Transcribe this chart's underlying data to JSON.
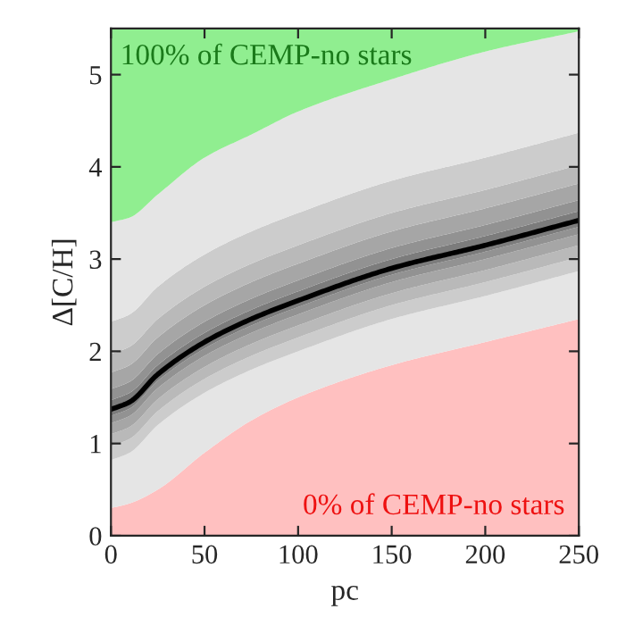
{
  "chart_data": {
    "type": "area",
    "stacked": true,
    "xlabel": "pc",
    "ylabel": "Δ[C/H]",
    "annotations": [
      "100% of CEMP-no stars",
      "0% of CEMP-no stars"
    ],
    "xlim": [
      0,
      250
    ],
    "ylim": [
      0,
      5.5
    ],
    "xticks": [
      0,
      50,
      100,
      150,
      200,
      250
    ],
    "yticks": [
      0,
      1,
      2,
      3,
      4,
      5
    ],
    "grid": false,
    "legend": false,
    "x": [
      0,
      10,
      25,
      50,
      75,
      100,
      150,
      200,
      250
    ],
    "series": [
      {
        "color": "#ffc0c0",
        "values": [
          0.3,
          0.35,
          0.5,
          0.9,
          1.25,
          1.5,
          1.85,
          2.1,
          2.35
        ]
      },
      {
        "color": "#e5e5e5",
        "values": [
          0.52,
          0.55,
          0.7,
          0.65,
          0.55,
          0.5,
          0.5,
          0.5,
          0.52
        ]
      },
      {
        "color": "#cccccc",
        "values": [
          0.15,
          0.15,
          0.15,
          0.15,
          0.15,
          0.15,
          0.15,
          0.15,
          0.15
        ]
      },
      {
        "color": "#b9b9b9",
        "values": [
          0.13,
          0.13,
          0.13,
          0.13,
          0.13,
          0.13,
          0.13,
          0.13,
          0.13
        ]
      },
      {
        "color": "#a6a6a6",
        "values": [
          0.12,
          0.12,
          0.12,
          0.12,
          0.12,
          0.12,
          0.12,
          0.12,
          0.12
        ]
      },
      {
        "color": "#929292",
        "values": [
          0.08,
          0.08,
          0.08,
          0.08,
          0.08,
          0.08,
          0.08,
          0.08,
          0.08
        ]
      },
      {
        "color": "#7c7c7c",
        "values": [
          0.17,
          0.17,
          0.17,
          0.17,
          0.17,
          0.17,
          0.17,
          0.17,
          0.17
        ]
      },
      {
        "color": "#929292",
        "values": [
          0.12,
          0.12,
          0.12,
          0.12,
          0.12,
          0.12,
          0.12,
          0.12,
          0.12
        ]
      },
      {
        "color": "#a6a6a6",
        "values": [
          0.18,
          0.18,
          0.18,
          0.18,
          0.18,
          0.18,
          0.18,
          0.18,
          0.18
        ]
      },
      {
        "color": "#b9b9b9",
        "values": [
          0.2,
          0.2,
          0.2,
          0.2,
          0.2,
          0.2,
          0.2,
          0.2,
          0.2
        ]
      },
      {
        "color": "#cccccc",
        "values": [
          0.35,
          0.35,
          0.35,
          0.35,
          0.35,
          0.35,
          0.35,
          0.35,
          0.35
        ]
      },
      {
        "color": "#e5e5e5",
        "values": [
          1.08,
          1.05,
          1.0,
          1.05,
          1.05,
          1.1,
          1.1,
          1.15,
          1.1
        ]
      },
      {
        "color": "#90ee90",
        "values": [
          2.1,
          2.05,
          1.8,
          1.4,
          1.15,
          0.9,
          0.55,
          0.25,
          0.03
        ]
      },
      {
        "type": "line",
        "color": "#000000",
        "values": [
          1.37,
          1.45,
          1.75,
          2.1,
          2.35,
          2.55,
          2.9,
          3.15,
          3.42
        ]
      }
    ]
  }
}
